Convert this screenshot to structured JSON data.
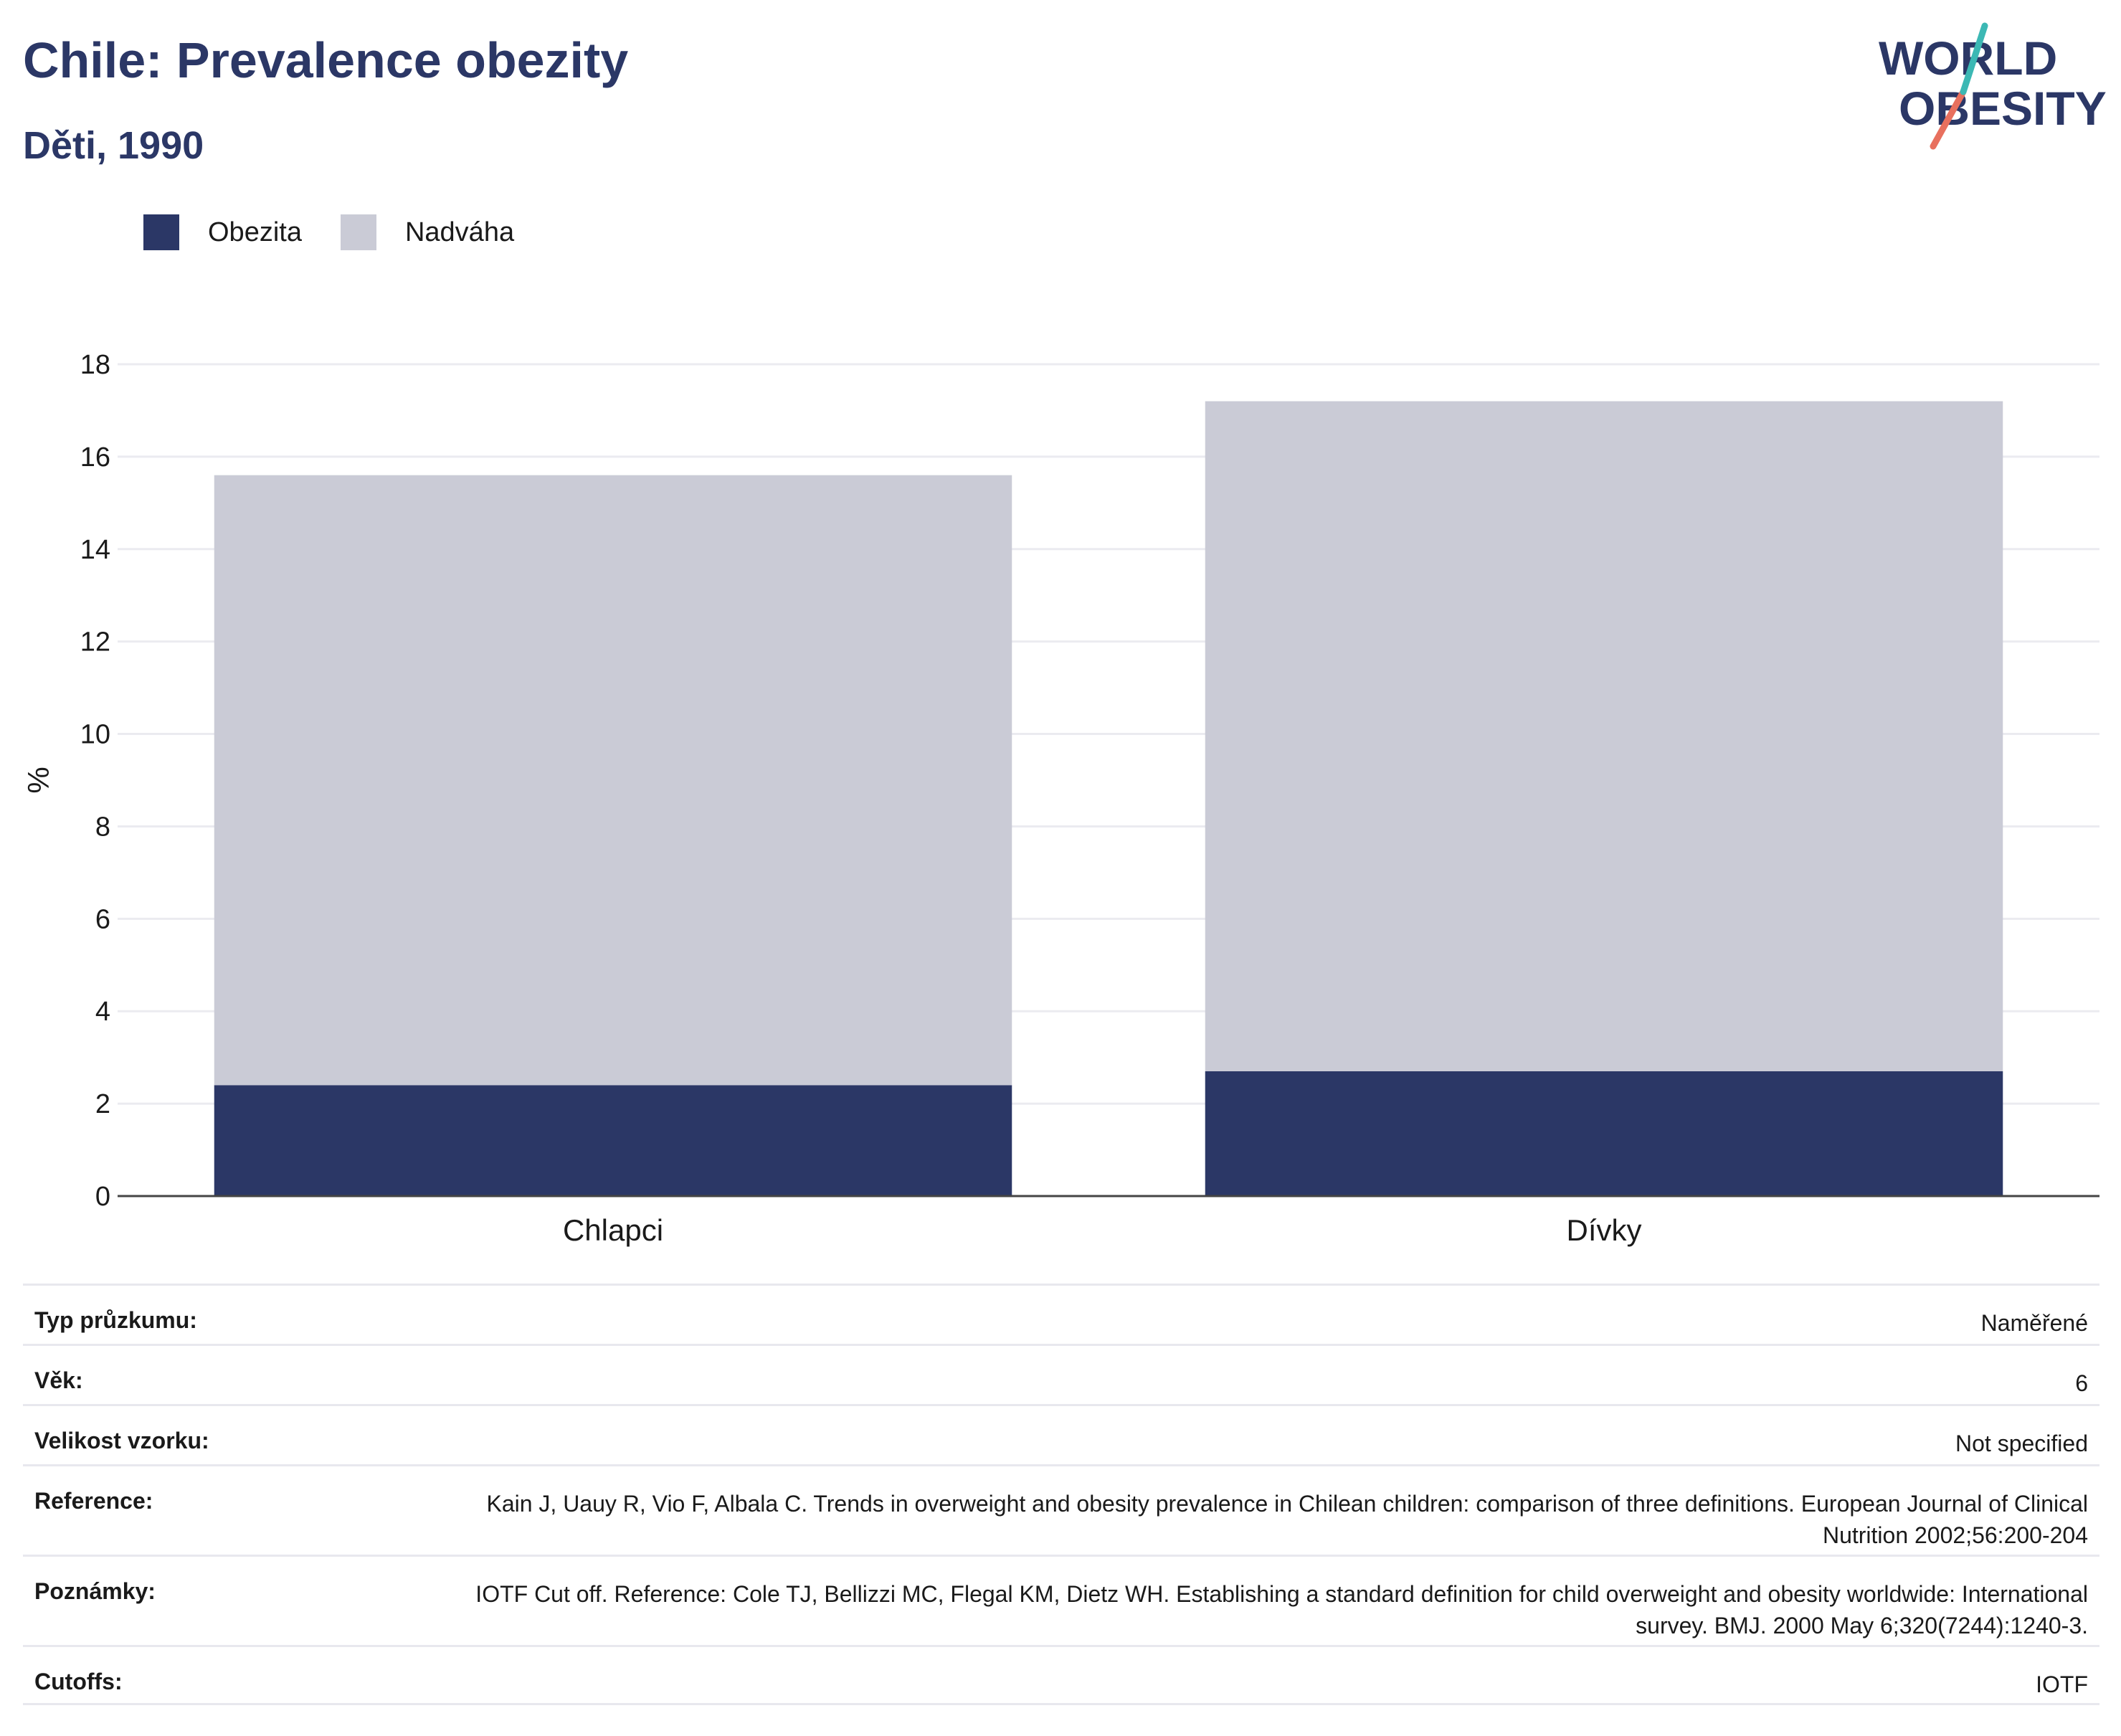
{
  "header": {
    "title": "Chile: Prevalence obezity",
    "subtitle": "Děti, 1990"
  },
  "logo": {
    "line1": "WORLD",
    "line2": "OBESITY",
    "colors": {
      "text": "#2b3766",
      "teal": "#3cb8b4",
      "coral": "#e8705e"
    }
  },
  "legend": [
    {
      "label": "Obezita",
      "color": "#2b3766"
    },
    {
      "label": "Nadváha",
      "color": "#cacbd6"
    }
  ],
  "chart_data": {
    "type": "bar",
    "stacked": true,
    "categories": [
      "Chlapci",
      "Dívky"
    ],
    "series": [
      {
        "name": "Obezita",
        "color": "#2b3766",
        "values": [
          2.4,
          2.7
        ]
      },
      {
        "name": "Nadváha",
        "color": "#cacbd6",
        "values": [
          13.2,
          14.5
        ]
      }
    ],
    "ylabel": "%",
    "ylim": [
      0,
      18
    ],
    "yticks": [
      "0",
      "2",
      "4",
      "6",
      "8",
      "10",
      "12",
      "14",
      "16",
      "18"
    ],
    "grid": true
  },
  "info": [
    {
      "label": "Typ průzkumu:",
      "value": "Naměřené"
    },
    {
      "label": "Věk:",
      "value": "6"
    },
    {
      "label": "Velikost vzorku:",
      "value": "Not specified"
    },
    {
      "label": "Reference:",
      "value": "Kain J, Uauy R, Vio F, Albala C. Trends in overweight and obesity prevalence in Chilean children: comparison of three definitions. European Journal of Clinical Nutrition 2002;56:200-204"
    },
    {
      "label": "Poznámky:",
      "value": "IOTF Cut off. Reference: Cole TJ, Bellizzi MC, Flegal KM, Dietz WH. Establishing a standard definition for child overweight and obesity worldwide: International survey. BMJ. 2000 May 6;320(7244):1240-3."
    },
    {
      "label": "Cutoffs:",
      "value": "IOTF"
    }
  ]
}
